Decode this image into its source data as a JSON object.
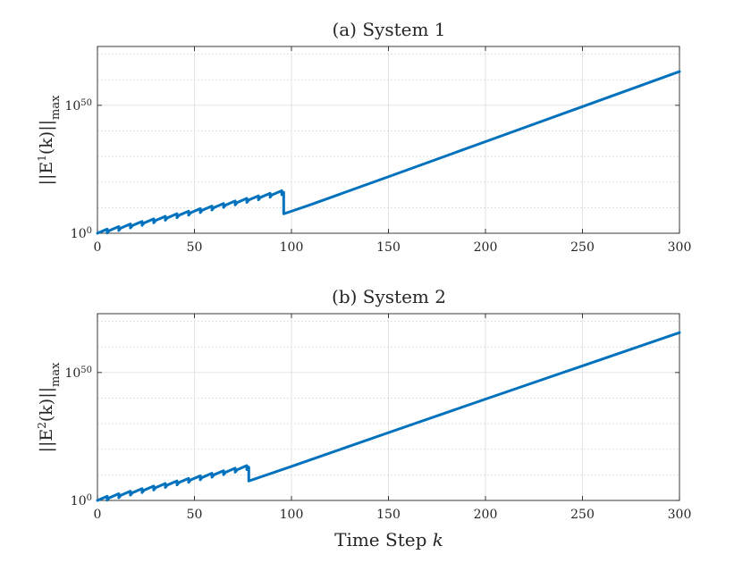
{
  "chart_data": [
    {
      "type": "line",
      "title": "(a) System 1",
      "ylabel": "||E¹(k)||_max",
      "ylabel_parts": [
        "||E",
        "1",
        "(k)||",
        "max"
      ],
      "xlabel": "",
      "xlim": [
        0,
        300
      ],
      "ylim_log10": [
        0,
        73
      ],
      "yscale": "log",
      "grid": true,
      "xticks": [
        0,
        50,
        100,
        150,
        200,
        250,
        300
      ],
      "yticks": [
        {
          "base": "10",
          "exp": "0",
          "log10": 0
        },
        {
          "base": "10",
          "exp": "50",
          "log10": 50
        }
      ],
      "line_color": "#0072bd",
      "sawtooth": {
        "period": 6,
        "start": 0,
        "end": 96,
        "base_log10": 0,
        "slope_log10_per_step": 0.3,
        "drop_log10": 1.55
      },
      "series": [
        {
          "x": [
            96,
            100,
            110,
            150,
            200,
            250,
            300
          ],
          "log10_y": [
            7.6,
            8.6,
            11.2,
            22.1,
            35.8,
            49.5,
            63.2
          ]
        }
      ]
    },
    {
      "type": "line",
      "title": "(b) System 2",
      "ylabel": "||E²(k)||_max",
      "ylabel_parts": [
        "||E",
        "2",
        "(k)||",
        "max"
      ],
      "xlabel": "Time Step k",
      "xlabel_parts": [
        "Time Step ",
        "k"
      ],
      "xlim": [
        0,
        300
      ],
      "ylim_log10": [
        0,
        73
      ],
      "yscale": "log",
      "grid": true,
      "xticks": [
        0,
        50,
        100,
        150,
        200,
        250,
        300
      ],
      "yticks": [
        {
          "base": "10",
          "exp": "0",
          "log10": 0
        },
        {
          "base": "10",
          "exp": "50",
          "log10": 50
        }
      ],
      "line_color": "#0072bd",
      "sawtooth": {
        "period": 6,
        "start": 0,
        "end": 78,
        "base_log10": 0,
        "slope_log10_per_step": 0.3,
        "drop_log10": 1.55
      },
      "series": [
        {
          "x": [
            78,
            100,
            150,
            200,
            250,
            300
          ],
          "log10_y": [
            7.6,
            13.3,
            26.5,
            39.6,
            52.6,
            65.6
          ]
        }
      ]
    }
  ]
}
